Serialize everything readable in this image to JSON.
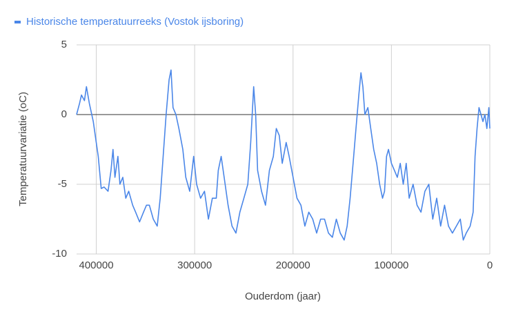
{
  "chart_data": {
    "type": "line",
    "x_label": "Ouderdom (jaar)",
    "y_label": "Temperatuurvariatie (oC)",
    "x": [
      420000,
      417000,
      415000,
      412000,
      410000,
      407000,
      403000,
      400000,
      398000,
      395000,
      392000,
      388000,
      385000,
      383000,
      381000,
      378000,
      376000,
      373000,
      370000,
      367000,
      363000,
      360000,
      356000,
      352000,
      349000,
      346000,
      342000,
      338000,
      335000,
      332000,
      329000,
      326000,
      324000,
      322000,
      319000,
      316000,
      312000,
      309000,
      305000,
      301000,
      298000,
      294000,
      290000,
      286000,
      282000,
      278000,
      276000,
      273000,
      270000,
      266000,
      262000,
      258000,
      254000,
      250000,
      246000,
      243000,
      240000,
      238000,
      236000,
      232000,
      228000,
      224000,
      220000,
      217000,
      214000,
      211000,
      207000,
      204000,
      200000,
      196000,
      192000,
      188000,
      184000,
      180000,
      176000,
      172000,
      168000,
      164000,
      160000,
      156000,
      152000,
      148000,
      145000,
      142000,
      139000,
      136000,
      133000,
      131000,
      129000,
      127000,
      124000,
      121000,
      118000,
      115000,
      112000,
      109000,
      107000,
      105000,
      103000,
      100000,
      97000,
      94000,
      91000,
      88000,
      85000,
      82000,
      78000,
      74000,
      70000,
      66000,
      62000,
      58000,
      54000,
      50000,
      46000,
      42000,
      38000,
      34000,
      30000,
      27000,
      24000,
      20000,
      17000,
      15000,
      13000,
      11000,
      9000,
      7000,
      5000,
      3000,
      1000,
      0
    ],
    "series": [
      {
        "name": "Historische temperatuurreeks (Vostok ijsboring)",
        "color": "#4a86e8",
        "values": [
          0,
          0.8,
          1.4,
          1.0,
          2.0,
          0.8,
          -0.5,
          -2,
          -3,
          -5.3,
          -5.2,
          -5.5,
          -4,
          -2.5,
          -4.5,
          -3,
          -5,
          -4.5,
          -6,
          -5.5,
          -6.5,
          -7,
          -7.7,
          -7,
          -6.5,
          -6.5,
          -7.5,
          -8,
          -6,
          -3,
          0,
          2.5,
          3.2,
          0.5,
          0,
          -1,
          -2.5,
          -4.5,
          -5.5,
          -3,
          -5,
          -6,
          -5.5,
          -7.5,
          -6,
          -6,
          -4,
          -3,
          -4.5,
          -6.5,
          -8,
          -8.5,
          -7,
          -6,
          -5,
          -2,
          2,
          0,
          -4,
          -5.5,
          -6.5,
          -4,
          -3,
          -1,
          -1.5,
          -3.5,
          -2,
          -3,
          -4.5,
          -6,
          -6.5,
          -8,
          -7,
          -7.5,
          -8.5,
          -7.5,
          -7.5,
          -8.5,
          -8.8,
          -7.5,
          -8.5,
          -9,
          -8,
          -6,
          -3.5,
          -1,
          1.5,
          3,
          2,
          0,
          0.5,
          -1,
          -2.5,
          -3.5,
          -5,
          -6,
          -5.5,
          -3,
          -2.5,
          -3.5,
          -4,
          -4.5,
          -3.5,
          -5,
          -3.5,
          -6,
          -5,
          -6.5,
          -7,
          -5.5,
          -5,
          -7.5,
          -6,
          -8,
          -6.5,
          -8,
          -8.5,
          -8,
          -7.5,
          -9,
          -8.5,
          -8,
          -7,
          -3,
          -1,
          0.5,
          0,
          -0.5,
          0,
          -1,
          0.5,
          -1
        ]
      }
    ],
    "xlim": [
      420000,
      0
    ],
    "xticks": [
      400000,
      300000,
      200000,
      100000,
      0
    ],
    "ylim": [
      -10,
      5
    ],
    "yticks": [
      5,
      0,
      -5,
      -10
    ],
    "grid": true,
    "legend": "top"
  }
}
